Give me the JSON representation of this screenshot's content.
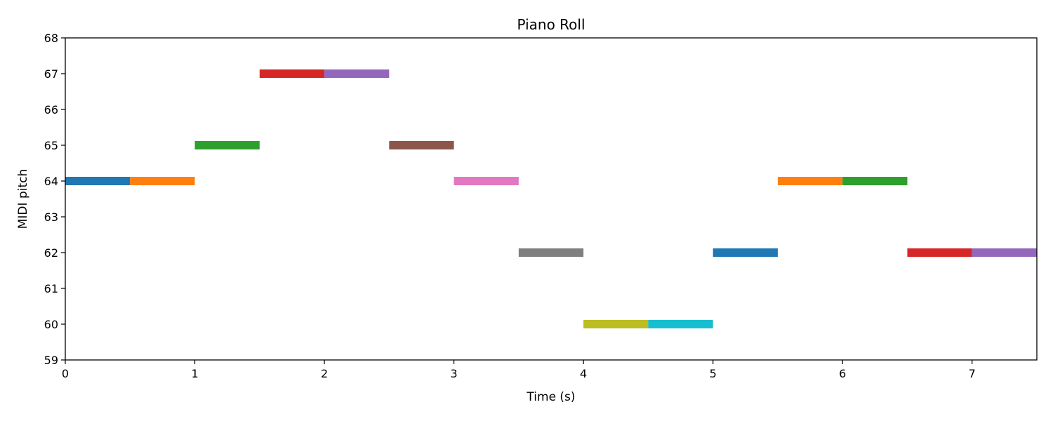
{
  "chart_data": {
    "type": "bar",
    "subtype": "piano-roll",
    "title": "Piano Roll",
    "xlabel": "Time (s)",
    "ylabel": "MIDI pitch",
    "xlim": [
      0,
      7.5
    ],
    "ylim": [
      59,
      68
    ],
    "xticks": [
      0,
      1,
      2,
      3,
      4,
      5,
      6,
      7
    ],
    "yticks": [
      59,
      60,
      61,
      62,
      63,
      64,
      65,
      66,
      67,
      68
    ],
    "grid": false,
    "notes": [
      {
        "pitch": 64,
        "start": 0.0,
        "end": 0.5,
        "color": "#1f77b4"
      },
      {
        "pitch": 64,
        "start": 0.5,
        "end": 1.0,
        "color": "#ff7f0e"
      },
      {
        "pitch": 65,
        "start": 1.0,
        "end": 1.5,
        "color": "#2ca02c"
      },
      {
        "pitch": 67,
        "start": 1.5,
        "end": 2.0,
        "color": "#d62728"
      },
      {
        "pitch": 67,
        "start": 2.0,
        "end": 2.5,
        "color": "#9467bd"
      },
      {
        "pitch": 65,
        "start": 2.5,
        "end": 3.0,
        "color": "#8c564b"
      },
      {
        "pitch": 64,
        "start": 3.0,
        "end": 3.5,
        "color": "#e377c2"
      },
      {
        "pitch": 62,
        "start": 3.5,
        "end": 4.0,
        "color": "#7f7f7f"
      },
      {
        "pitch": 60,
        "start": 4.0,
        "end": 4.5,
        "color": "#bcbd22"
      },
      {
        "pitch": 60,
        "start": 4.5,
        "end": 5.0,
        "color": "#17becf"
      },
      {
        "pitch": 62,
        "start": 5.0,
        "end": 5.5,
        "color": "#1f77b4"
      },
      {
        "pitch": 64,
        "start": 5.5,
        "end": 6.0,
        "color": "#ff7f0e"
      },
      {
        "pitch": 64,
        "start": 6.0,
        "end": 6.5,
        "color": "#2ca02c"
      },
      {
        "pitch": 62,
        "start": 6.5,
        "end": 7.0,
        "color": "#d62728"
      },
      {
        "pitch": 62,
        "start": 7.0,
        "end": 7.5,
        "color": "#9467bd"
      }
    ]
  }
}
